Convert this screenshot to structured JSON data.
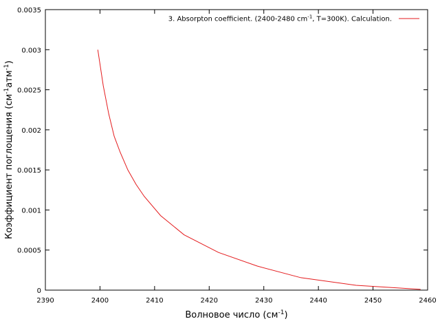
{
  "chart_data": {
    "type": "line",
    "xlabel": [
      "Волновое число (см",
      "-1",
      ")"
    ],
    "ylabel": [
      "Коэффициент поглощения (см",
      "-1",
      "атм",
      "-1",
      ")"
    ],
    "xlim": [
      2390,
      2460
    ],
    "xticks": [
      2390,
      2400,
      2410,
      2420,
      2430,
      2440,
      2450,
      2460
    ],
    "ylim": [
      0,
      0.0035
    ],
    "yticks": [
      0,
      0.0005,
      0.001,
      0.0015,
      0.002,
      0.0025,
      0.003,
      0.0035
    ],
    "legend": "top-right",
    "series": [
      {
        "name": [
          "3. Absorpton coefficient. (2400-2480 cm",
          "-1",
          ", T=300K). Calculation."
        ],
        "color": "#e41a1c",
        "x": [
          2399.6,
          2400.6,
          2401.6,
          2402.6,
          2403.7,
          2405.1,
          2406.6,
          2408.1,
          2411.1,
          2415.4,
          2421.7,
          2428.8,
          2436.8,
          2446.9,
          2458.7
        ],
        "values": [
          0.003,
          0.00255,
          0.0022,
          0.00192,
          0.00172,
          0.0015,
          0.00132,
          0.00117,
          0.00093,
          0.00069,
          0.00047,
          0.0003,
          0.000155,
          6e-05,
          1e-05
        ]
      }
    ]
  }
}
